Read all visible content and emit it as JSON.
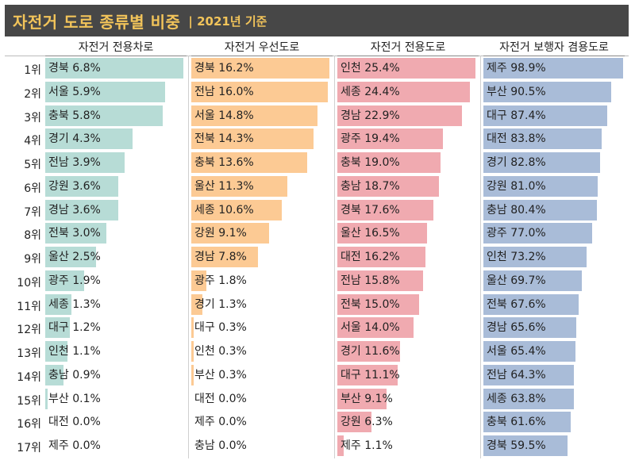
{
  "title": {
    "main": "자전거 도로 종류별 비중",
    "sub": "| 2021년 기준"
  },
  "colors": {
    "header_bg": "#474747",
    "title_text": "#f2c45a",
    "series": [
      "#b7dcd6",
      "#fcca94",
      "#f0aab0",
      "#a9bcd8"
    ]
  },
  "chart_data": {
    "type": "bar",
    "orientation": "horizontal",
    "ranks": [
      "1위",
      "2위",
      "3위",
      "4위",
      "5위",
      "6위",
      "7위",
      "8위",
      "9위",
      "10위",
      "11위",
      "12위",
      "13위",
      "14위",
      "15위",
      "16위",
      "17위"
    ],
    "series": [
      {
        "name": "자전거 전용차로",
        "regions": [
          "경북",
          "서울",
          "충북",
          "경기",
          "전남",
          "강원",
          "경남",
          "전북",
          "울산",
          "광주",
          "세종",
          "대구",
          "인천",
          "충남",
          "부산",
          "대전",
          "제주"
        ],
        "values": [
          6.8,
          5.9,
          5.8,
          4.3,
          3.9,
          3.6,
          3.6,
          3.0,
          2.5,
          1.9,
          1.3,
          1.2,
          1.1,
          0.9,
          0.1,
          0.0,
          0.0
        ],
        "labels": [
          "6.8%",
          "5.9%",
          "5.8%",
          "4.3%",
          "3.9%",
          "3.6%",
          "3.6%",
          "3.0%",
          "2.5%",
          "1.9%",
          "1.3%",
          "1.2%",
          "1.1%",
          "0.9%",
          "0.1%",
          "0.0%",
          "0.0%"
        ]
      },
      {
        "name": "자전거 우선도로",
        "regions": [
          "경북",
          "전남",
          "서울",
          "전북",
          "충북",
          "울산",
          "세종",
          "강원",
          "경남",
          "광주",
          "경기",
          "대구",
          "인천",
          "부산",
          "대전",
          "제주",
          "충남"
        ],
        "values": [
          16.2,
          16.0,
          14.8,
          14.3,
          13.6,
          11.3,
          10.6,
          9.1,
          7.8,
          1.8,
          1.3,
          0.3,
          0.3,
          0.3,
          0.0,
          0.0,
          0.0
        ],
        "labels": [
          "16.2%",
          "16.0%",
          "14.8%",
          "14.3%",
          "13.6%",
          "11.3%",
          "10.6%",
          "9.1%",
          "7.8%",
          "1.8%",
          "1.3%",
          "0.3%",
          "0.3%",
          "0.3%",
          "0.0%",
          "0.0%",
          "0.0%"
        ]
      },
      {
        "name": "자전거 전용도로",
        "regions": [
          "인천",
          "세종",
          "경남",
          "광주",
          "충북",
          "충남",
          "경북",
          "울산",
          "대전",
          "전남",
          "전북",
          "서울",
          "경기",
          "대구",
          "부산",
          "강원",
          "제주"
        ],
        "values": [
          25.4,
          24.4,
          22.9,
          19.4,
          19.0,
          18.7,
          17.6,
          16.5,
          16.2,
          15.8,
          15.0,
          14.0,
          11.6,
          11.1,
          9.1,
          6.3,
          1.1
        ],
        "labels": [
          "25.4%",
          "24.4%",
          "22.9%",
          "19.4%",
          "19.0%",
          "18.7%",
          "17.6%",
          "16.5%",
          "16.2%",
          "15.8%",
          "15.0%",
          "14.0%",
          "11.6%",
          "11.1%",
          "9.1%",
          "6.3%",
          "1.1%"
        ]
      },
      {
        "name": "자전거 보행자 겸용도로",
        "regions": [
          "제주",
          "부산",
          "대구",
          "대전",
          "경기",
          "강원",
          "충남",
          "광주",
          "인천",
          "울산",
          "전북",
          "경남",
          "서울",
          "전남",
          "세종",
          "충북",
          "경북"
        ],
        "values": [
          98.9,
          90.5,
          87.4,
          83.8,
          82.8,
          81.0,
          80.4,
          77.0,
          73.2,
          69.7,
          67.6,
          65.6,
          65.4,
          64.3,
          63.8,
          61.6,
          59.5
        ],
        "labels": [
          "98.9%",
          "90.5%",
          "87.4%",
          "83.8%",
          "82.8%",
          "81.0%",
          "80.4%",
          "77.0%",
          "73.2%",
          "69.7%",
          "67.6%",
          "65.6%",
          "65.4%",
          "64.3%",
          "63.8%",
          "61.6%",
          "59.5%"
        ]
      }
    ]
  }
}
